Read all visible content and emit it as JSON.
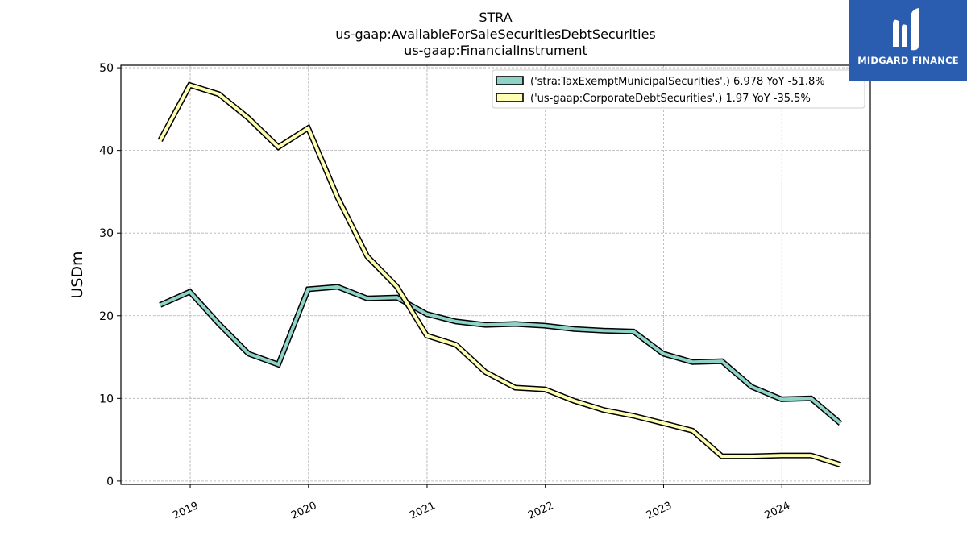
{
  "logo": {
    "text": "MIDGARD FINANCE",
    "color": "#2a5db0"
  },
  "chart_data": {
    "type": "line",
    "title": [
      "STRA",
      "us-gaap:AvailableForSaleSecuritiesDebtSecurities",
      "us-gaap:FinancialInstrument"
    ],
    "xlabel": "",
    "ylabel": "USDm",
    "ylim": [
      -0.4,
      50.3
    ],
    "xlim": [
      "2018-06-01",
      "2024-09-30"
    ],
    "yticks": [
      0,
      10,
      20,
      30,
      40,
      50
    ],
    "xticks": [
      "2019",
      "2020",
      "2021",
      "2022",
      "2023",
      "2024"
    ],
    "grid": true,
    "legend_position": "top-right",
    "x": [
      "2018-09-30",
      "2018-12-31",
      "2019-03-31",
      "2019-06-30",
      "2019-09-30",
      "2019-12-31",
      "2020-03-31",
      "2020-06-30",
      "2020-09-30",
      "2020-12-31",
      "2021-03-31",
      "2021-06-30",
      "2021-09-30",
      "2021-12-31",
      "2022-03-31",
      "2022-06-30",
      "2022-09-30",
      "2022-12-31",
      "2023-03-31",
      "2023-06-30",
      "2023-09-30",
      "2023-12-31",
      "2024-03-31",
      "2024-06-30"
    ],
    "series": [
      {
        "name": "('stra:TaxExemptMunicipalSecurities',) 6.978 YoY -51.8%",
        "color": "#8dd3c7",
        "values": [
          21.3,
          22.9,
          19.0,
          15.4,
          14.1,
          23.2,
          23.5,
          22.1,
          22.2,
          20.2,
          19.3,
          18.9,
          19.0,
          18.8,
          18.4,
          18.2,
          18.1,
          15.4,
          14.4,
          14.5,
          11.4,
          9.9,
          10.0,
          6.978
        ]
      },
      {
        "name": "('us-gaap:CorporateDebtSecurities',) 1.97 YoY -35.5%",
        "color": "#ffffb3",
        "values": [
          41.2,
          47.9,
          46.8,
          43.9,
          40.4,
          42.7,
          34.3,
          27.2,
          23.5,
          17.6,
          16.5,
          13.2,
          11.3,
          11.1,
          9.7,
          8.6,
          7.9,
          7.0,
          6.1,
          3.0,
          3.0,
          3.1,
          3.1,
          1.97
        ]
      }
    ]
  }
}
